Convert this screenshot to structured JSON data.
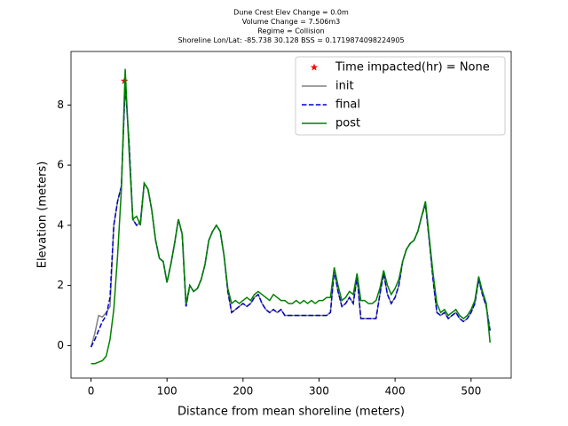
{
  "chart_data": {
    "type": "line",
    "title_lines": [
      "Dune Crest Elev Change = 0.0m",
      "Volume Change = 7.506m3",
      "Regime = Collision",
      "Shoreline Lon/Lat: -85.738 30.128   BSS = 0.1719874098224905"
    ],
    "xlabel": "Distance from mean shoreline (meters)",
    "ylabel": "Elevation (meters)",
    "x": [
      0,
      5,
      10,
      15,
      20,
      25,
      30,
      35,
      40,
      45,
      50,
      55,
      60,
      65,
      70,
      75,
      80,
      85,
      90,
      95,
      100,
      105,
      110,
      115,
      120,
      125,
      130,
      135,
      140,
      145,
      150,
      155,
      160,
      165,
      170,
      175,
      180,
      185,
      190,
      195,
      200,
      205,
      210,
      215,
      220,
      225,
      230,
      235,
      240,
      245,
      250,
      255,
      260,
      265,
      270,
      275,
      280,
      285,
      290,
      295,
      300,
      305,
      310,
      315,
      320,
      325,
      330,
      335,
      340,
      345,
      350,
      355,
      360,
      365,
      370,
      375,
      380,
      385,
      390,
      395,
      400,
      405,
      410,
      415,
      420,
      425,
      430,
      435,
      440,
      445,
      450,
      455,
      460,
      465,
      470,
      475,
      480,
      485,
      490,
      495,
      500,
      505,
      510,
      515,
      520,
      525
    ],
    "series": [
      {
        "name": "Time impacted(hr) = None",
        "color": "#ff0000",
        "style": "star",
        "x": [
          44
        ],
        "values": [
          8.8
        ]
      },
      {
        "name": "init",
        "color": "#808080",
        "style": "solid",
        "values": [
          -0.05,
          0.4,
          1.0,
          0.95,
          1.1,
          1.3,
          4.0,
          4.8,
          5.3,
          8.7,
          6.8,
          4.2,
          4.0,
          4.1,
          5.4,
          5.2,
          4.5,
          3.5,
          2.9,
          2.8,
          2.1,
          2.7,
          3.4,
          4.2,
          3.7,
          1.3,
          2.0,
          1.8,
          1.9,
          2.2,
          2.7,
          3.5,
          3.8,
          4.0,
          3.8,
          3.0,
          1.8,
          1.1,
          1.2,
          1.3,
          1.4,
          1.3,
          1.4,
          1.6,
          1.7,
          1.4,
          1.2,
          1.1,
          1.2,
          1.1,
          1.2,
          1.0,
          1.0,
          1.0,
          1.0,
          1.0,
          1.0,
          1.0,
          1.0,
          1.0,
          1.0,
          1.0,
          1.0,
          1.1,
          2.5,
          1.8,
          1.3,
          1.4,
          1.6,
          1.4,
          2.3,
          0.9,
          0.9,
          0.9,
          0.9,
          0.9,
          1.7,
          2.4,
          1.7,
          1.4,
          1.6,
          2.0,
          2.8,
          3.2,
          3.4,
          3.5,
          3.8,
          4.3,
          4.7,
          3.5,
          2.2,
          1.1,
          1.0,
          1.1,
          0.9,
          1.0,
          1.1,
          0.9,
          0.8,
          0.9,
          1.1,
          1.4,
          2.2,
          1.7,
          1.3,
          0.5
        ]
      },
      {
        "name": "final",
        "color": "#0000cc",
        "style": "dashed",
        "values": [
          -0.05,
          0.2,
          0.5,
          0.8,
          1.0,
          1.6,
          4.0,
          4.8,
          5.3,
          8.7,
          6.8,
          4.2,
          4.0,
          4.1,
          5.4,
          5.2,
          4.5,
          3.5,
          2.9,
          2.8,
          2.1,
          2.7,
          3.4,
          4.2,
          3.7,
          1.3,
          2.0,
          1.8,
          1.9,
          2.2,
          2.7,
          3.5,
          3.8,
          4.0,
          3.8,
          3.0,
          1.8,
          1.1,
          1.2,
          1.3,
          1.4,
          1.3,
          1.4,
          1.6,
          1.7,
          1.4,
          1.2,
          1.1,
          1.2,
          1.1,
          1.2,
          1.0,
          1.0,
          1.0,
          1.0,
          1.0,
          1.0,
          1.0,
          1.0,
          1.0,
          1.0,
          1.0,
          1.0,
          1.1,
          2.5,
          1.8,
          1.3,
          1.4,
          1.6,
          1.4,
          2.3,
          0.9,
          0.9,
          0.9,
          0.9,
          0.9,
          1.7,
          2.4,
          1.7,
          1.4,
          1.6,
          2.0,
          2.8,
          3.2,
          3.4,
          3.5,
          3.8,
          4.3,
          4.7,
          3.5,
          2.2,
          1.1,
          1.0,
          1.1,
          0.9,
          1.0,
          1.1,
          0.9,
          0.8,
          0.9,
          1.1,
          1.4,
          2.2,
          1.7,
          1.3,
          0.5
        ]
      },
      {
        "name": "post",
        "color": "#008000",
        "style": "solid",
        "values": [
          -0.6,
          -0.6,
          -0.55,
          -0.5,
          -0.35,
          0.2,
          1.2,
          3.0,
          5.2,
          9.2,
          6.5,
          4.2,
          4.3,
          4.0,
          5.4,
          5.2,
          4.5,
          3.5,
          2.9,
          2.8,
          2.1,
          2.7,
          3.4,
          4.2,
          3.7,
          1.4,
          2.0,
          1.8,
          1.9,
          2.2,
          2.7,
          3.5,
          3.8,
          4.0,
          3.8,
          3.0,
          1.9,
          1.4,
          1.5,
          1.4,
          1.5,
          1.6,
          1.5,
          1.7,
          1.8,
          1.7,
          1.6,
          1.5,
          1.7,
          1.6,
          1.5,
          1.5,
          1.4,
          1.4,
          1.5,
          1.4,
          1.5,
          1.4,
          1.5,
          1.4,
          1.5,
          1.5,
          1.6,
          1.6,
          2.6,
          2.0,
          1.5,
          1.6,
          1.8,
          1.7,
          2.4,
          1.5,
          1.5,
          1.4,
          1.4,
          1.5,
          1.9,
          2.5,
          2.0,
          1.7,
          1.9,
          2.2,
          2.8,
          3.2,
          3.4,
          3.5,
          3.8,
          4.3,
          4.8,
          3.6,
          2.4,
          1.4,
          1.1,
          1.2,
          1.0,
          1.1,
          1.2,
          1.0,
          0.9,
          1.0,
          1.2,
          1.5,
          2.3,
          1.8,
          1.4,
          0.1
        ]
      }
    ],
    "xlim": [
      -26.3,
      552.8
    ],
    "ylim": [
      -1.08,
      9.78
    ],
    "xticks": [
      0,
      100,
      200,
      300,
      400,
      500
    ],
    "yticks": [
      0,
      2,
      4,
      6,
      8
    ],
    "legend": "upper right"
  }
}
